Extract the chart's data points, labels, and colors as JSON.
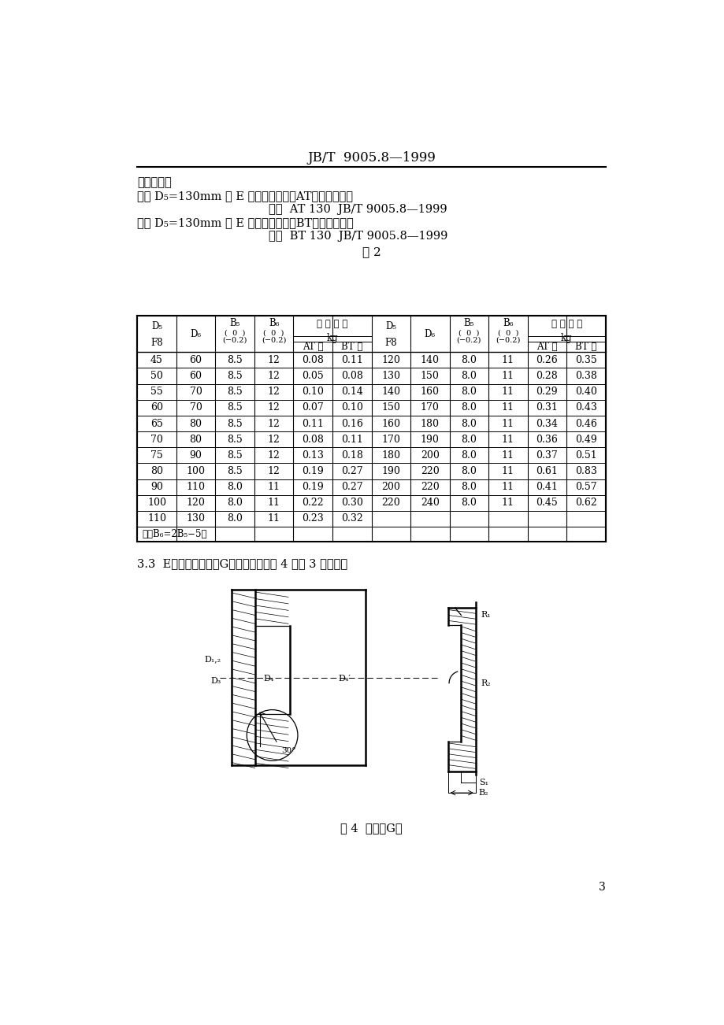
{
  "header_title": "JB/T  9005.8—1999",
  "page_number": "3",
  "bg_color": "#ffffff",
  "text_color": "#000000",
  "table": {
    "rows_left": [
      [
        "45",
        "60",
        "8.5",
        "12",
        "0.08",
        "0.11"
      ],
      [
        "50",
        "60",
        "8.5",
        "12",
        "0.05",
        "0.08"
      ],
      [
        "55",
        "70",
        "8.5",
        "12",
        "0.10",
        "0.14"
      ],
      [
        "60",
        "70",
        "8.5",
        "12",
        "0.07",
        "0.10"
      ],
      [
        "65",
        "80",
        "8.5",
        "12",
        "0.11",
        "0.16"
      ],
      [
        "70",
        "80",
        "8.5",
        "12",
        "0.08",
        "0.11"
      ],
      [
        "75",
        "90",
        "8.5",
        "12",
        "0.13",
        "0.18"
      ],
      [
        "80",
        "100",
        "8.5",
        "12",
        "0.19",
        "0.27"
      ],
      [
        "90",
        "110",
        "8.0",
        "11",
        "0.19",
        "0.27"
      ],
      [
        "100",
        "120",
        "8.0",
        "11",
        "0.22",
        "0.30"
      ],
      [
        "110",
        "130",
        "8.0",
        "11",
        "0.23",
        "0.32"
      ]
    ],
    "rows_right": [
      [
        "120",
        "140",
        "8.0",
        "11",
        "0.26",
        "0.35"
      ],
      [
        "130",
        "150",
        "8.0",
        "11",
        "0.28",
        "0.38"
      ],
      [
        "140",
        "160",
        "8.0",
        "11",
        "0.29",
        "0.40"
      ],
      [
        "150",
        "170",
        "8.0",
        "11",
        "0.31",
        "0.43"
      ],
      [
        "160",
        "180",
        "8.0",
        "11",
        "0.34",
        "0.46"
      ],
      [
        "170",
        "190",
        "8.0",
        "11",
        "0.36",
        "0.49"
      ],
      [
        "180",
        "200",
        "8.0",
        "11",
        "0.37",
        "0.51"
      ],
      [
        "190",
        "220",
        "8.0",
        "11",
        "0.61",
        "0.83"
      ],
      [
        "200",
        "220",
        "8.0",
        "11",
        "0.41",
        "0.57"
      ],
      [
        "220",
        "240",
        "8.0",
        "11",
        "0.45",
        "0.62"
      ],
      [
        "",
        "",
        "",
        "",
        "",
        ""
      ]
    ]
  }
}
